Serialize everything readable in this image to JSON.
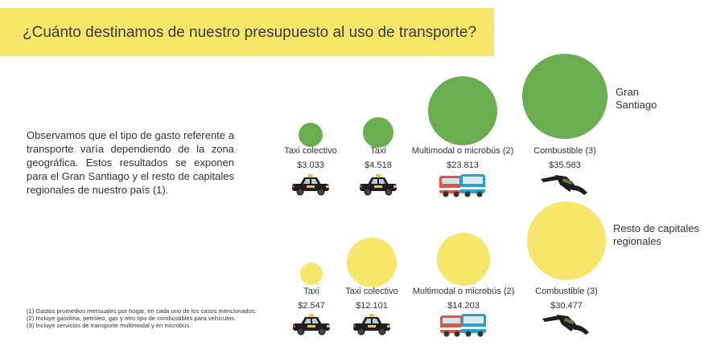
{
  "header": {
    "title": "¿Cuánto destinamos de nuestro presupuesto al uso de transporte?"
  },
  "intro": {
    "lines": [
      "Observamos que el tipo de gasto referente",
      "a transporte varía dependiendo de la zona",
      "geográfica. Estos resultados se exponen",
      "para el Gran Santiago y el resto de",
      "capitales regionales de nuestro país (1)."
    ]
  },
  "footnotes": [
    "(1) Gastos promedios mensuales por hogar, en cada uno de los casos mencionados.",
    "(2) Incluye gasolina, petróleo, gas y otro tipo de combustibles para vehículos.",
    "(3) Incluye servicios de transporte multimodal y en microbús."
  ],
  "colors": {
    "title_bar": "#f7e66c",
    "gran_santiago": "#6aad50",
    "resto": "#f7e66c"
  },
  "chart_data": [
    {
      "type": "bubble",
      "group_label": [
        "Gran",
        "Santiago"
      ],
      "color": "#6aad50",
      "points": [
        {
          "category": "Taxi colectivo",
          "label": "$3.033",
          "value": 3033,
          "icon": "taxi-icon"
        },
        {
          "category": "Taxi",
          "label": "$4.518",
          "value": 4518,
          "icon": "taxi-icon"
        },
        {
          "category": "Multimodal o microbús (2)",
          "label": "$23.813",
          "value": 23813,
          "icon": "bus-icon"
        },
        {
          "category": "Combustible (3)",
          "label": "$35.583",
          "value": 35583,
          "icon": "fuel-nozzle-icon"
        }
      ]
    },
    {
      "type": "bubble",
      "group_label": [
        "Resto de capitales",
        "regionales"
      ],
      "color": "#f7e66c",
      "points": [
        {
          "category": "Taxi",
          "label": "$2.547",
          "value": 2547,
          "icon": "taxi-icon"
        },
        {
          "category": "Taxi colectivo",
          "label": "$12.101",
          "value": 12101,
          "icon": "taxi-icon"
        },
        {
          "category": "Multimodal o microbús (2)",
          "label": "$14.203",
          "value": 14203,
          "icon": "bus-icon"
        },
        {
          "category": "Combustible (3)",
          "label": "$30.477",
          "value": 30477,
          "icon": "fuel-nozzle-icon"
        }
      ]
    }
  ]
}
